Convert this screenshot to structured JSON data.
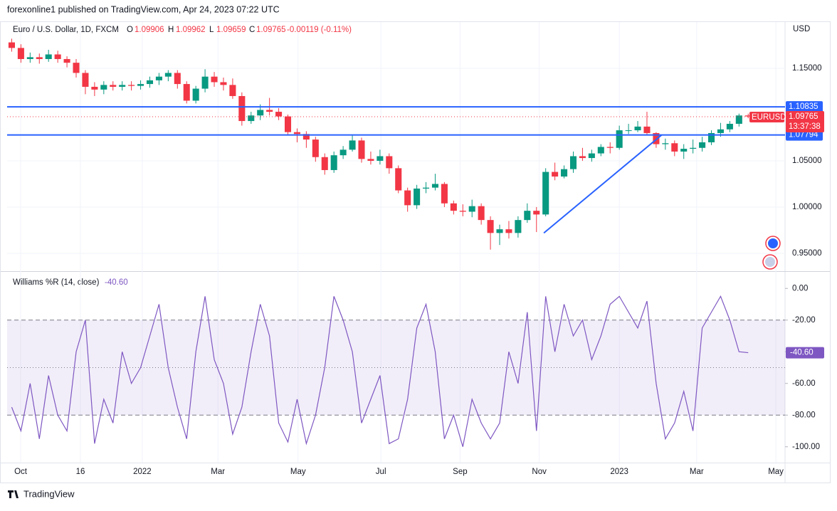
{
  "header": {
    "publisher": "forexonline1 published on TradingView.com, Apr 24, 2023 07:22 UTC"
  },
  "footer": {
    "brand": "TradingView"
  },
  "chart_data": [
    {
      "type": "candlestick",
      "legend": {
        "symbol": "Euro / U.S. Dollar, 1D, FXCM",
        "o_label": "O",
        "open": "1.09906",
        "h_label": "H",
        "high": "1.09962",
        "l_label": "L",
        "low": "1.09659",
        "c_label": "C",
        "close": "1.09765",
        "change": "-0.00119 (-0.11%)"
      },
      "currency": "USD",
      "ticker": "EURUSD",
      "countdown": "13:37:38",
      "up_color": "#089981",
      "down_color": "#f23645",
      "xlim": [
        0,
        84.5
      ],
      "xticks": [
        {
          "value": 1.47,
          "label": "Oct"
        },
        {
          "value": 7.96,
          "label": "16"
        },
        {
          "value": 14.68,
          "label": "2022"
        },
        {
          "value": 22.9,
          "label": "Mar"
        },
        {
          "value": 31.6,
          "label": "May"
        },
        {
          "value": 40.6,
          "label": "Jul"
        },
        {
          "value": 49.2,
          "label": "Sep"
        },
        {
          "value": 57.8,
          "label": "Nov"
        },
        {
          "value": 66.5,
          "label": "2023"
        },
        {
          "value": 74.9,
          "label": "Mar"
        },
        {
          "value": 83.5,
          "label": "May"
        }
      ],
      "ylim": [
        0.9315,
        1.1969
      ],
      "yticks": [
        {
          "value": 0.95,
          "label": "0.95000"
        },
        {
          "value": 1.0,
          "label": "1.00000"
        },
        {
          "value": 1.05,
          "label": "1.05000"
        },
        {
          "value": 1.15,
          "label": "1.15000"
        }
      ],
      "grid": true,
      "open": [
        1.178,
        1.172,
        1.16,
        1.162,
        1.16,
        1.165,
        1.16,
        1.156,
        1.145,
        1.13,
        1.127,
        1.132,
        1.13,
        1.132,
        1.131,
        1.133,
        1.137,
        1.141,
        1.145,
        1.133,
        1.115,
        1.128,
        1.141,
        1.135,
        1.132,
        1.12,
        1.093,
        1.099,
        1.105,
        1.103,
        1.098,
        1.081,
        1.079,
        1.073,
        1.054,
        1.04,
        1.056,
        1.062,
        1.072,
        1.052,
        1.05,
        1.055,
        1.042,
        1.018,
        1.002,
        1.02,
        1.021,
        1.025,
        1.004,
        0.996,
        0.995,
        1.001,
        0.986,
        0.972,
        0.976,
        0.972,
        0.986,
        0.996,
        0.992,
        1.038,
        1.033,
        1.041,
        1.055,
        1.053,
        1.058,
        1.065,
        1.064,
        1.083,
        1.083,
        1.087,
        1.08,
        1.068,
        1.069,
        1.06,
        1.063,
        1.064,
        1.07,
        1.08,
        1.084,
        1.09,
        1.099
      ],
      "high": [
        1.182,
        1.176,
        1.167,
        1.166,
        1.17,
        1.169,
        1.163,
        1.16,
        1.148,
        1.135,
        1.136,
        1.136,
        1.136,
        1.136,
        1.137,
        1.141,
        1.145,
        1.148,
        1.148,
        1.136,
        1.131,
        1.149,
        1.146,
        1.14,
        1.139,
        1.124,
        1.103,
        1.111,
        1.118,
        1.107,
        1.1,
        1.085,
        1.082,
        1.076,
        1.058,
        1.06,
        1.066,
        1.078,
        1.075,
        1.06,
        1.062,
        1.058,
        1.045,
        1.021,
        1.024,
        1.027,
        1.036,
        1.027,
        1.007,
        1.003,
        1.008,
        1.004,
        0.99,
        0.981,
        0.985,
        0.99,
        1.004,
        1.0,
        1.042,
        1.048,
        1.045,
        1.06,
        1.064,
        1.062,
        1.068,
        1.07,
        1.088,
        1.09,
        1.093,
        1.103,
        1.081,
        1.074,
        1.072,
        1.068,
        1.073,
        1.076,
        1.083,
        1.091,
        1.093,
        1.101,
        1.101
      ],
      "low": [
        1.168,
        1.156,
        1.156,
        1.155,
        1.157,
        1.156,
        1.151,
        1.14,
        1.122,
        1.12,
        1.122,
        1.126,
        1.126,
        1.126,
        1.127,
        1.129,
        1.132,
        1.136,
        1.128,
        1.112,
        1.112,
        1.124,
        1.13,
        1.126,
        1.117,
        1.088,
        1.09,
        1.094,
        1.099,
        1.094,
        1.078,
        1.07,
        1.064,
        1.049,
        1.035,
        1.037,
        1.052,
        1.06,
        1.048,
        1.046,
        1.046,
        1.036,
        1.015,
        0.995,
        0.998,
        1.015,
        1.018,
        1.0,
        0.992,
        0.99,
        0.989,
        0.981,
        0.954,
        0.959,
        0.966,
        0.967,
        0.983,
        0.973,
        0.99,
        1.029,
        1.031,
        1.037,
        1.05,
        1.049,
        1.055,
        1.058,
        1.062,
        1.079,
        1.081,
        1.078,
        1.064,
        1.062,
        1.055,
        1.052,
        1.058,
        1.06,
        1.067,
        1.076,
        1.081,
        1.087,
        1.096
      ],
      "close": [
        1.172,
        1.16,
        1.162,
        1.16,
        1.165,
        1.16,
        1.156,
        1.145,
        1.13,
        1.127,
        1.132,
        1.13,
        1.132,
        1.131,
        1.133,
        1.137,
        1.141,
        1.145,
        1.133,
        1.115,
        1.128,
        1.141,
        1.135,
        1.132,
        1.12,
        1.093,
        1.099,
        1.105,
        1.103,
        1.098,
        1.081,
        1.079,
        1.073,
        1.054,
        1.04,
        1.056,
        1.062,
        1.072,
        1.052,
        1.05,
        1.055,
        1.042,
        1.018,
        1.002,
        1.02,
        1.021,
        1.025,
        1.004,
        0.996,
        0.995,
        1.001,
        0.986,
        0.972,
        0.976,
        0.972,
        0.986,
        0.996,
        0.992,
        1.038,
        1.033,
        1.041,
        1.055,
        1.053,
        1.058,
        1.065,
        1.064,
        1.083,
        1.083,
        1.087,
        1.08,
        1.068,
        1.069,
        1.06,
        1.063,
        1.064,
        1.07,
        1.08,
        1.084,
        1.09,
        1.099,
        1.098
      ],
      "levels": [
        1.10835,
        1.07794
      ],
      "level_color": "#2962ff",
      "last_price": 1.09765,
      "trendline": {
        "x": [
          58.3,
          71.1
        ],
        "y": [
          0.972,
          1.078
        ],
        "color": "#2962ff"
      }
    },
    {
      "type": "line",
      "title": "Williams %R (14, close)",
      "current": {
        "value": -40.6,
        "label": "-40.60"
      },
      "color": "#7e57c2",
      "ylim": [
        -110,
        10
      ],
      "yticks": [
        {
          "value": 0,
          "label": "0.00"
        },
        {
          "value": -20,
          "label": "-20.00"
        },
        {
          "value": -40,
          "label": "-40.00"
        },
        {
          "value": -60,
          "label": "-60.00"
        },
        {
          "value": -80,
          "label": "-80.00"
        },
        {
          "value": -100,
          "label": "-100.00"
        }
      ],
      "band": [
        -80,
        -20
      ],
      "middle": -50,
      "values": [
        -75,
        -90,
        -60,
        -95,
        -55,
        -80,
        -90,
        -40,
        -20,
        -98,
        -70,
        -85,
        -40,
        -60,
        -50,
        -30,
        -10,
        -50,
        -75,
        -95,
        -40,
        -5,
        -45,
        -60,
        -92,
        -75,
        -40,
        -10,
        -30,
        -85,
        -97,
        -70,
        -98,
        -80,
        -50,
        -5,
        -20,
        -40,
        -85,
        -70,
        -55,
        -98,
        -95,
        -70,
        -25,
        -10,
        -40,
        -95,
        -80,
        -100,
        -70,
        -85,
        -95,
        -85,
        -40,
        -60,
        -15,
        -90,
        -5,
        -40,
        -10,
        -30,
        -20,
        -45,
        -30,
        -10,
        -5,
        -15,
        -25,
        -8,
        -60,
        -95,
        -85,
        -65,
        -90,
        -25,
        -15,
        -5,
        -20,
        -40,
        -40.6
      ]
    }
  ]
}
